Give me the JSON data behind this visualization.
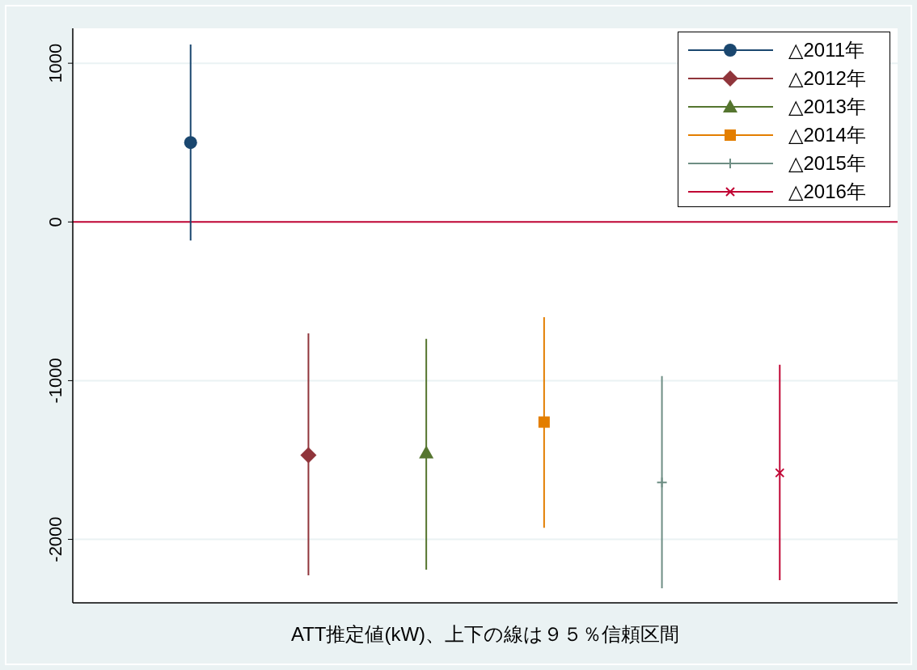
{
  "chart_data": {
    "type": "scatter",
    "xlabel": "ATT推定値(kW)、上下の線は９５％信頼区間",
    "categories": [
      null,
      null,
      null,
      null,
      null,
      null
    ],
    "series": [
      {
        "name": "△2011年",
        "color": "#1a476f",
        "marker": "circle",
        "values": [
          500,
          null,
          null,
          null,
          null,
          null
        ],
        "errors": [
          [
            -117,
            1118
          ],
          null,
          null,
          null,
          null,
          null
        ]
      },
      {
        "name": "△2012年",
        "color": "#90353b",
        "marker": "diamond",
        "values": [
          null,
          -1469,
          null,
          null,
          null,
          null
        ],
        "errors": [
          null,
          [
            -2227,
            -702
          ],
          null,
          null,
          null,
          null
        ]
      },
      {
        "name": "△2013年",
        "color": "#55752f",
        "marker": "triangle",
        "values": [
          null,
          null,
          -1454,
          null,
          null,
          null
        ],
        "errors": [
          null,
          null,
          [
            -2191,
            -737
          ],
          null,
          null,
          null
        ]
      },
      {
        "name": "△2014年",
        "color": "#e37e00",
        "marker": "square",
        "values": [
          null,
          null,
          null,
          -1261,
          null,
          null
        ],
        "errors": [
          null,
          null,
          null,
          [
            -1927,
            -600
          ],
          null,
          null
        ]
      },
      {
        "name": "△2015年",
        "color": "#6e8e84",
        "marker": "plus",
        "values": [
          null,
          null,
          null,
          null,
          -1642,
          null
        ],
        "errors": [
          null,
          null,
          null,
          null,
          [
            -2308,
            -971
          ],
          null
        ]
      },
      {
        "name": "△2016年",
        "color": "#c10534",
        "marker": "cross",
        "values": [
          null,
          null,
          null,
          null,
          null,
          -1581
        ],
        "errors": [
          null,
          null,
          null,
          null,
          null,
          [
            -2257,
            -900
          ]
        ]
      }
    ],
    "ylim": [
      -2400,
      1220
    ],
    "yticks": [
      -2000,
      -1000,
      0,
      1000
    ],
    "grid": "y",
    "ref_lines": [
      {
        "axis": "y",
        "value": 0,
        "color": "#c10534"
      }
    ],
    "legend": "top right"
  }
}
